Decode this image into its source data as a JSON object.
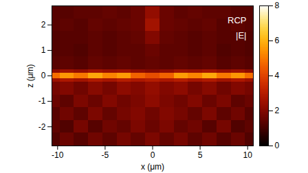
{
  "chart_data": {
    "type": "heatmap",
    "x_label": "x (μm)",
    "y_label": "z (μm)",
    "annotations": [
      "RCP",
      "|E|"
    ],
    "xlim": [
      -10.6,
      10.6
    ],
    "ylim": [
      -2.75,
      2.75
    ],
    "xticks": [
      -10,
      -5,
      0,
      5,
      10
    ],
    "yticks": [
      -2,
      -1,
      0,
      1,
      2
    ],
    "x_edges": [
      -10.6,
      -9.75,
      -8.25,
      -6.75,
      -5.25,
      -3.75,
      -2.25,
      -0.75,
      0.75,
      2.25,
      3.75,
      5.25,
      6.75,
      8.25,
      9.75,
      10.6
    ],
    "z_edges": [
      -2.75,
      -2.25,
      -1.75,
      -1.25,
      -0.75,
      -0.25,
      -0.1,
      0.1,
      0.25,
      0.75,
      1.25,
      1.75,
      2.25,
      2.75
    ],
    "cells": [
      [
        1.2,
        1.6,
        1.3,
        1.7,
        1.4,
        1.8,
        1.5,
        1.9,
        1.5,
        1.8,
        1.4,
        1.7,
        1.3,
        1.6,
        1.2
      ],
      [
        1.4,
        1.2,
        1.8,
        1.3,
        1.7,
        1.5,
        1.9,
        1.6,
        1.9,
        1.5,
        1.7,
        1.3,
        1.8,
        1.2,
        1.4
      ],
      [
        1.3,
        1.7,
        1.4,
        1.9,
        1.5,
        1.8,
        2.0,
        1.7,
        2.0,
        1.8,
        1.5,
        1.9,
        1.4,
        1.7,
        1.3
      ],
      [
        1.6,
        1.4,
        1.9,
        1.6,
        2.0,
        1.7,
        1.9,
        2.2,
        1.9,
        1.7,
        2.0,
        1.6,
        1.9,
        1.4,
        1.6
      ],
      [
        1.8,
        2.0,
        1.7,
        2.1,
        1.8,
        2.2,
        2.0,
        2.3,
        2.0,
        2.2,
        1.8,
        2.1,
        1.7,
        2.0,
        1.8
      ],
      [
        2.5,
        2.8,
        2.6,
        2.9,
        2.7,
        3.0,
        2.8,
        3.0,
        2.8,
        3.0,
        2.7,
        2.9,
        2.6,
        2.8,
        2.5
      ],
      [
        4.8,
        5.5,
        5.0,
        5.8,
        5.2,
        5.6,
        4.6,
        4.2,
        4.6,
        5.6,
        5.2,
        5.8,
        5.0,
        5.5,
        4.8
      ],
      [
        2.2,
        2.5,
        2.3,
        2.6,
        2.4,
        2.5,
        2.2,
        2.0,
        2.2,
        2.5,
        2.4,
        2.6,
        2.3,
        2.5,
        2.2
      ],
      [
        1.3,
        1.4,
        1.3,
        1.5,
        1.4,
        1.5,
        1.4,
        1.5,
        1.4,
        1.5,
        1.4,
        1.5,
        1.3,
        1.4,
        1.3
      ],
      [
        1.2,
        1.3,
        1.2,
        1.4,
        1.3,
        1.4,
        1.4,
        1.6,
        1.4,
        1.4,
        1.3,
        1.4,
        1.2,
        1.3,
        1.2
      ],
      [
        1.2,
        1.3,
        1.3,
        1.4,
        1.3,
        1.4,
        1.5,
        2.0,
        1.5,
        1.4,
        1.3,
        1.4,
        1.3,
        1.3,
        1.2
      ],
      [
        1.3,
        1.4,
        1.3,
        1.5,
        1.4,
        1.5,
        1.6,
        2.6,
        1.6,
        1.5,
        1.4,
        1.5,
        1.3,
        1.4,
        1.3
      ],
      [
        1.3,
        1.3,
        1.4,
        1.4,
        1.5,
        1.4,
        1.6,
        2.3,
        1.6,
        1.4,
        1.5,
        1.4,
        1.4,
        1.3,
        1.3
      ]
    ],
    "colorbar": {
      "range": [
        0,
        8
      ],
      "ticks": [
        0,
        2,
        4,
        6,
        8
      ]
    }
  }
}
